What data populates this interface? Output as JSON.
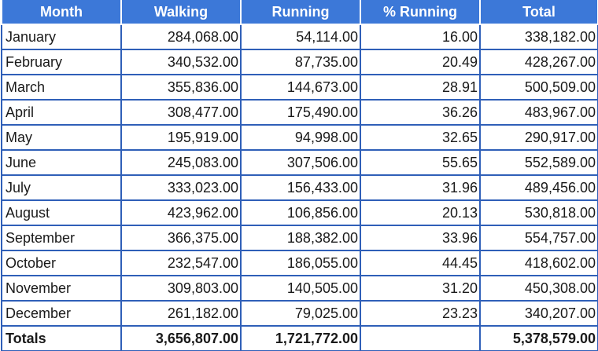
{
  "table": {
    "headers": [
      "Month",
      "Walking",
      "Running",
      "% Running",
      "Total"
    ],
    "rows": [
      [
        "January",
        "284,068.00",
        "54,114.00",
        "16.00",
        "338,182.00"
      ],
      [
        "February",
        "340,532.00",
        "87,735.00",
        "20.49",
        "428,267.00"
      ],
      [
        "March",
        "355,836.00",
        "144,673.00",
        "28.91",
        "500,509.00"
      ],
      [
        "April",
        "308,477.00",
        "175,490.00",
        "36.26",
        "483,967.00"
      ],
      [
        "May",
        "195,919.00",
        "94,998.00",
        "32.65",
        "290,917.00"
      ],
      [
        "June",
        "245,083.00",
        "307,506.00",
        "55.65",
        "552,589.00"
      ],
      [
        "July",
        "333,023.00",
        "156,433.00",
        "31.96",
        "489,456.00"
      ],
      [
        "August",
        "423,962.00",
        "106,856.00",
        "20.13",
        "530,818.00"
      ],
      [
        "September",
        "366,375.00",
        "188,382.00",
        "33.96",
        "554,757.00"
      ],
      [
        "October",
        "232,547.00",
        "186,055.00",
        "44.45",
        "418,602.00"
      ],
      [
        "November",
        "309,803.00",
        "140,505.00",
        "31.20",
        "450,308.00"
      ],
      [
        "December",
        "261,182.00",
        "79,025.00",
        "23.23",
        "340,207.00"
      ]
    ],
    "totals": [
      "Totals",
      "3,656,807.00",
      "1,721,772.00",
      "",
      "5,378,579.00"
    ]
  },
  "colors": {
    "header_bg": "#3c78d8",
    "header_text": "#ffffff",
    "grid_border": "#2f5fb8"
  }
}
